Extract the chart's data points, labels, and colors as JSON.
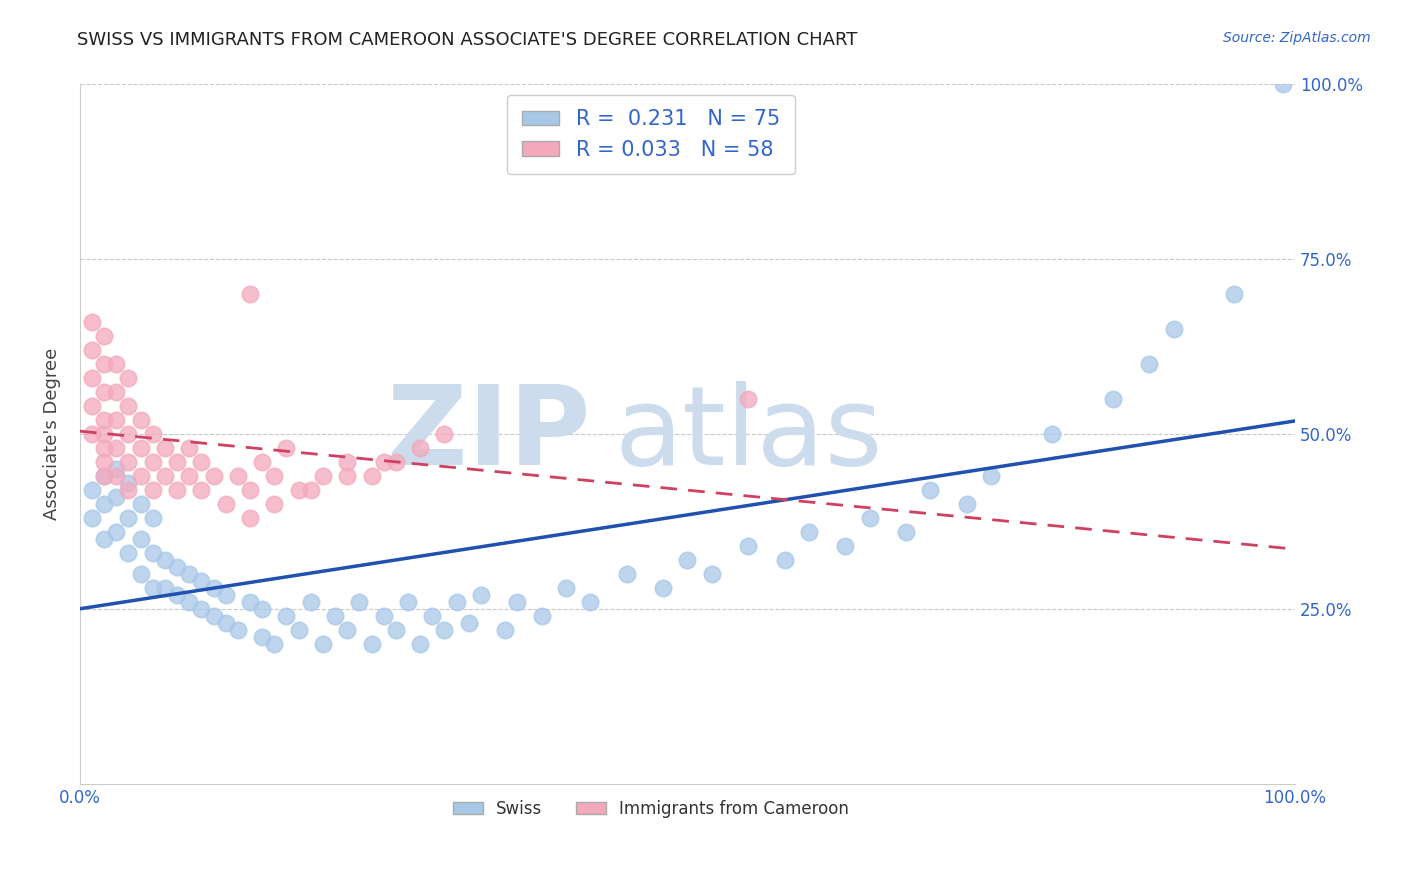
{
  "title": "SWISS VS IMMIGRANTS FROM CAMEROON ASSOCIATE'S DEGREE CORRELATION CHART",
  "source_text": "Source: ZipAtlas.com",
  "ylabel": "Associate's Degree",
  "watermark": "ZIPatlas",
  "legend_label1": "Swiss",
  "legend_label2": "Immigrants from Cameroon",
  "r1": 0.231,
  "n1": 75,
  "r2": 0.033,
  "n2": 58,
  "color_swiss": "#a8c8e8",
  "color_cameroon": "#f4a8bc",
  "line_color_swiss": "#2050b0",
  "line_color_cameroon": "#d04060",
  "xlim": [
    0.0,
    1.0
  ],
  "ylim": [
    0.0,
    1.0
  ],
  "ytick_values": [
    0.25,
    0.5,
    0.75,
    1.0
  ],
  "ytick_labels": [
    "25.0%",
    "50.0%",
    "75.0%",
    "100.0%"
  ],
  "swiss_x": [
    0.01,
    0.01,
    0.02,
    0.02,
    0.02,
    0.03,
    0.03,
    0.03,
    0.04,
    0.04,
    0.04,
    0.05,
    0.05,
    0.05,
    0.06,
    0.06,
    0.06,
    0.07,
    0.07,
    0.08,
    0.08,
    0.09,
    0.09,
    0.1,
    0.1,
    0.11,
    0.11,
    0.12,
    0.12,
    0.13,
    0.14,
    0.15,
    0.15,
    0.16,
    0.17,
    0.18,
    0.19,
    0.2,
    0.21,
    0.22,
    0.23,
    0.24,
    0.25,
    0.26,
    0.27,
    0.28,
    0.29,
    0.3,
    0.31,
    0.32,
    0.33,
    0.35,
    0.36,
    0.38,
    0.4,
    0.42,
    0.45,
    0.48,
    0.5,
    0.52,
    0.55,
    0.58,
    0.6,
    0.63,
    0.65,
    0.68,
    0.7,
    0.73,
    0.75,
    0.8,
    0.85,
    0.88,
    0.9,
    0.95,
    0.99
  ],
  "swiss_y": [
    0.38,
    0.42,
    0.35,
    0.4,
    0.44,
    0.36,
    0.41,
    0.45,
    0.33,
    0.38,
    0.43,
    0.3,
    0.35,
    0.4,
    0.28,
    0.33,
    0.38,
    0.28,
    0.32,
    0.27,
    0.31,
    0.26,
    0.3,
    0.25,
    0.29,
    0.24,
    0.28,
    0.23,
    0.27,
    0.22,
    0.26,
    0.21,
    0.25,
    0.2,
    0.24,
    0.22,
    0.26,
    0.2,
    0.24,
    0.22,
    0.26,
    0.2,
    0.24,
    0.22,
    0.26,
    0.2,
    0.24,
    0.22,
    0.26,
    0.23,
    0.27,
    0.22,
    0.26,
    0.24,
    0.28,
    0.26,
    0.3,
    0.28,
    0.32,
    0.3,
    0.34,
    0.32,
    0.36,
    0.34,
    0.38,
    0.36,
    0.42,
    0.4,
    0.44,
    0.5,
    0.55,
    0.6,
    0.65,
    0.7,
    1.0
  ],
  "cameroon_x": [
    0.01,
    0.01,
    0.01,
    0.01,
    0.01,
    0.02,
    0.02,
    0.02,
    0.02,
    0.02,
    0.02,
    0.02,
    0.02,
    0.03,
    0.03,
    0.03,
    0.03,
    0.03,
    0.04,
    0.04,
    0.04,
    0.04,
    0.04,
    0.05,
    0.05,
    0.05,
    0.06,
    0.06,
    0.06,
    0.07,
    0.07,
    0.08,
    0.08,
    0.09,
    0.09,
    0.1,
    0.1,
    0.11,
    0.12,
    0.13,
    0.14,
    0.15,
    0.16,
    0.17,
    0.18,
    0.2,
    0.22,
    0.24,
    0.26,
    0.28,
    0.3,
    0.14,
    0.16,
    0.19,
    0.22,
    0.25,
    0.14,
    0.55
  ],
  "cameroon_y": [
    0.5,
    0.54,
    0.58,
    0.62,
    0.66,
    0.44,
    0.48,
    0.52,
    0.56,
    0.6,
    0.64,
    0.46,
    0.5,
    0.44,
    0.48,
    0.52,
    0.56,
    0.6,
    0.42,
    0.46,
    0.5,
    0.54,
    0.58,
    0.44,
    0.48,
    0.52,
    0.42,
    0.46,
    0.5,
    0.44,
    0.48,
    0.42,
    0.46,
    0.44,
    0.48,
    0.42,
    0.46,
    0.44,
    0.4,
    0.44,
    0.42,
    0.46,
    0.44,
    0.48,
    0.42,
    0.44,
    0.46,
    0.44,
    0.46,
    0.48,
    0.5,
    0.38,
    0.4,
    0.42,
    0.44,
    0.46,
    0.7,
    0.55
  ],
  "title_fontsize": 13,
  "axis_label_fontsize": 13,
  "tick_fontsize": 12,
  "legend_fontsize": 15,
  "background_color": "#ffffff",
  "grid_color": "#bbbbbb",
  "watermark_color": "#ccdcec",
  "watermark_fontsize": 80
}
